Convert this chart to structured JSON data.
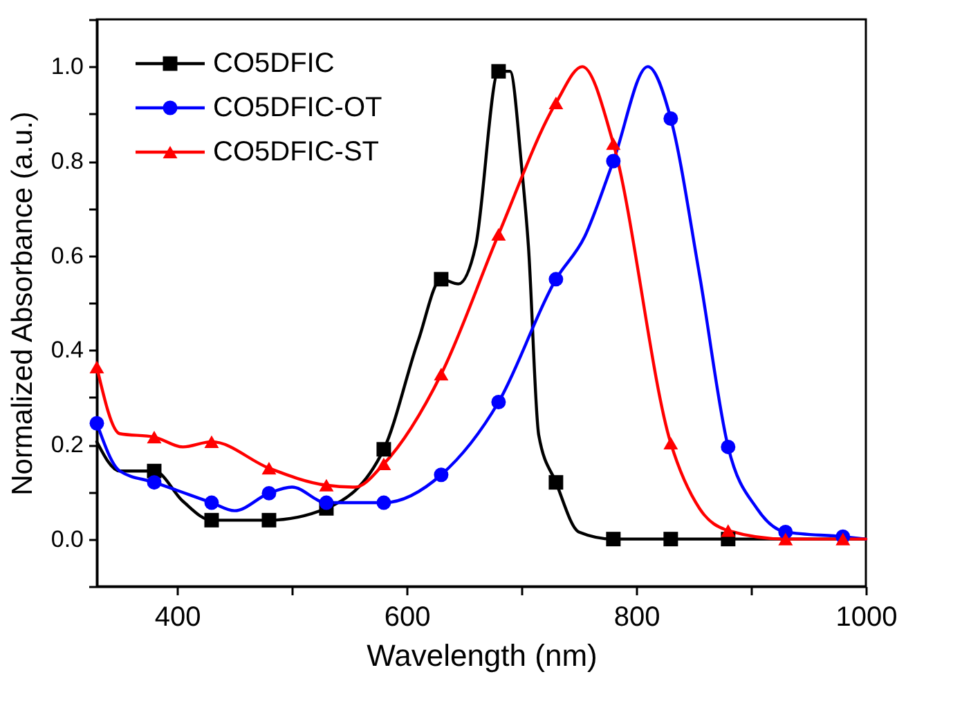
{
  "chart_data": {
    "type": "line",
    "xlabel": "Wavelength (nm)",
    "ylabel": "Normalized Absorbance (a.u.)",
    "xlim": [
      330,
      1000
    ],
    "ylim": [
      -0.1,
      1.1
    ],
    "xticks": [
      400,
      {
        "value": 500,
        "label": null
      },
      600,
      {
        "value": 700,
        "label": null
      },
      800,
      {
        "value": 900,
        "label": null
      },
      1000
    ],
    "yticks": [
      {
        "value": -0.1,
        "label": null
      },
      "0.0",
      {
        "value": 0.1,
        "label": null
      },
      0.2,
      {
        "value": 0.3,
        "label": null
      },
      0.4,
      {
        "value": 0.5,
        "label": null
      },
      0.6,
      {
        "value": 0.7,
        "label": null
      },
      0.8,
      {
        "value": 0.9,
        "label": null
      },
      "1.0",
      {
        "value": 1.1,
        "label": null
      }
    ],
    "grid": false,
    "legend": "top left",
    "line_style": "solid",
    "series": [
      {
        "name": "CO5DFIC",
        "color": "#000000",
        "type": "line",
        "marker": "none",
        "x": [
          330,
          350,
          380,
          405,
          430,
          480,
          530,
          580,
          610,
          630,
          645,
          660,
          680,
          690,
          700,
          706,
          715,
          730,
          750,
          780,
          830,
          880,
          930,
          980,
          1000
        ],
        "values": [
          0.206,
          0.144,
          0.144,
          0.08,
          0.04,
          0.04,
          0.065,
          0.19,
          0.42,
          0.55,
          0.54,
          0.62,
          0.99,
          0.99,
          0.79,
          0.62,
          0.22,
          0.12,
          0.015,
          0.0,
          0.0,
          0.0,
          0.0,
          0.0,
          0.0
        ]
      },
      {
        "name": "CO5DFIC-OT",
        "color": "#0000ff",
        "type": "line",
        "marker": "none",
        "x": [
          330,
          350,
          380,
          430,
          450,
          480,
          500,
          530,
          580,
          630,
          680,
          730,
          755,
          780,
          810,
          830,
          855,
          880,
          905,
          930,
          980,
          1000
        ],
        "values": [
          0.245,
          0.144,
          0.12,
          0.077,
          0.06,
          0.097,
          0.11,
          0.077,
          0.077,
          0.136,
          0.29,
          0.55,
          0.64,
          0.8,
          1.0,
          0.89,
          0.56,
          0.195,
          0.065,
          0.015,
          0.005,
          0.0
        ]
      },
      {
        "name": "CO5DFIC-ST",
        "color": "#ff0000",
        "type": "line",
        "marker": "none",
        "x": [
          330,
          350,
          380,
          405,
          430,
          480,
          530,
          555,
          580,
          630,
          680,
          730,
          753,
          780,
          830,
          855,
          880,
          930,
          980,
          1000
        ],
        "values": [
          0.364,
          0.223,
          0.216,
          0.195,
          0.206,
          0.15,
          0.114,
          0.11,
          0.159,
          0.349,
          0.645,
          0.923,
          1.0,
          0.837,
          0.203,
          0.065,
          0.018,
          0.0,
          0.0,
          0.0
        ]
      },
      {
        "color": "#000000",
        "type": "scatter",
        "marker": "square",
        "x": [
          380,
          430,
          480,
          530,
          580,
          630,
          680,
          730,
          780,
          830,
          880
        ],
        "values": [
          0.144,
          0.04,
          0.04,
          0.065,
          0.19,
          0.55,
          0.99,
          0.12,
          0.0,
          0.0,
          0.0
        ]
      },
      {
        "color": "#0000ff",
        "type": "scatter",
        "marker": "circle",
        "x": [
          330,
          380,
          430,
          480,
          530,
          580,
          630,
          680,
          730,
          780,
          830,
          880,
          930,
          980
        ],
        "values": [
          0.245,
          0.12,
          0.077,
          0.097,
          0.077,
          0.077,
          0.136,
          0.29,
          0.55,
          0.8,
          0.89,
          0.195,
          0.015,
          0.005
        ]
      },
      {
        "color": "#ff0000",
        "type": "scatter",
        "marker": "triangle",
        "x": [
          330,
          380,
          430,
          480,
          530,
          580,
          630,
          680,
          730,
          780,
          830,
          880,
          930,
          980
        ],
        "values": [
          0.364,
          0.216,
          0.206,
          0.15,
          0.114,
          0.159,
          0.349,
          0.645,
          0.923,
          0.837,
          0.203,
          0.018,
          0.0,
          0.0
        ]
      }
    ]
  }
}
